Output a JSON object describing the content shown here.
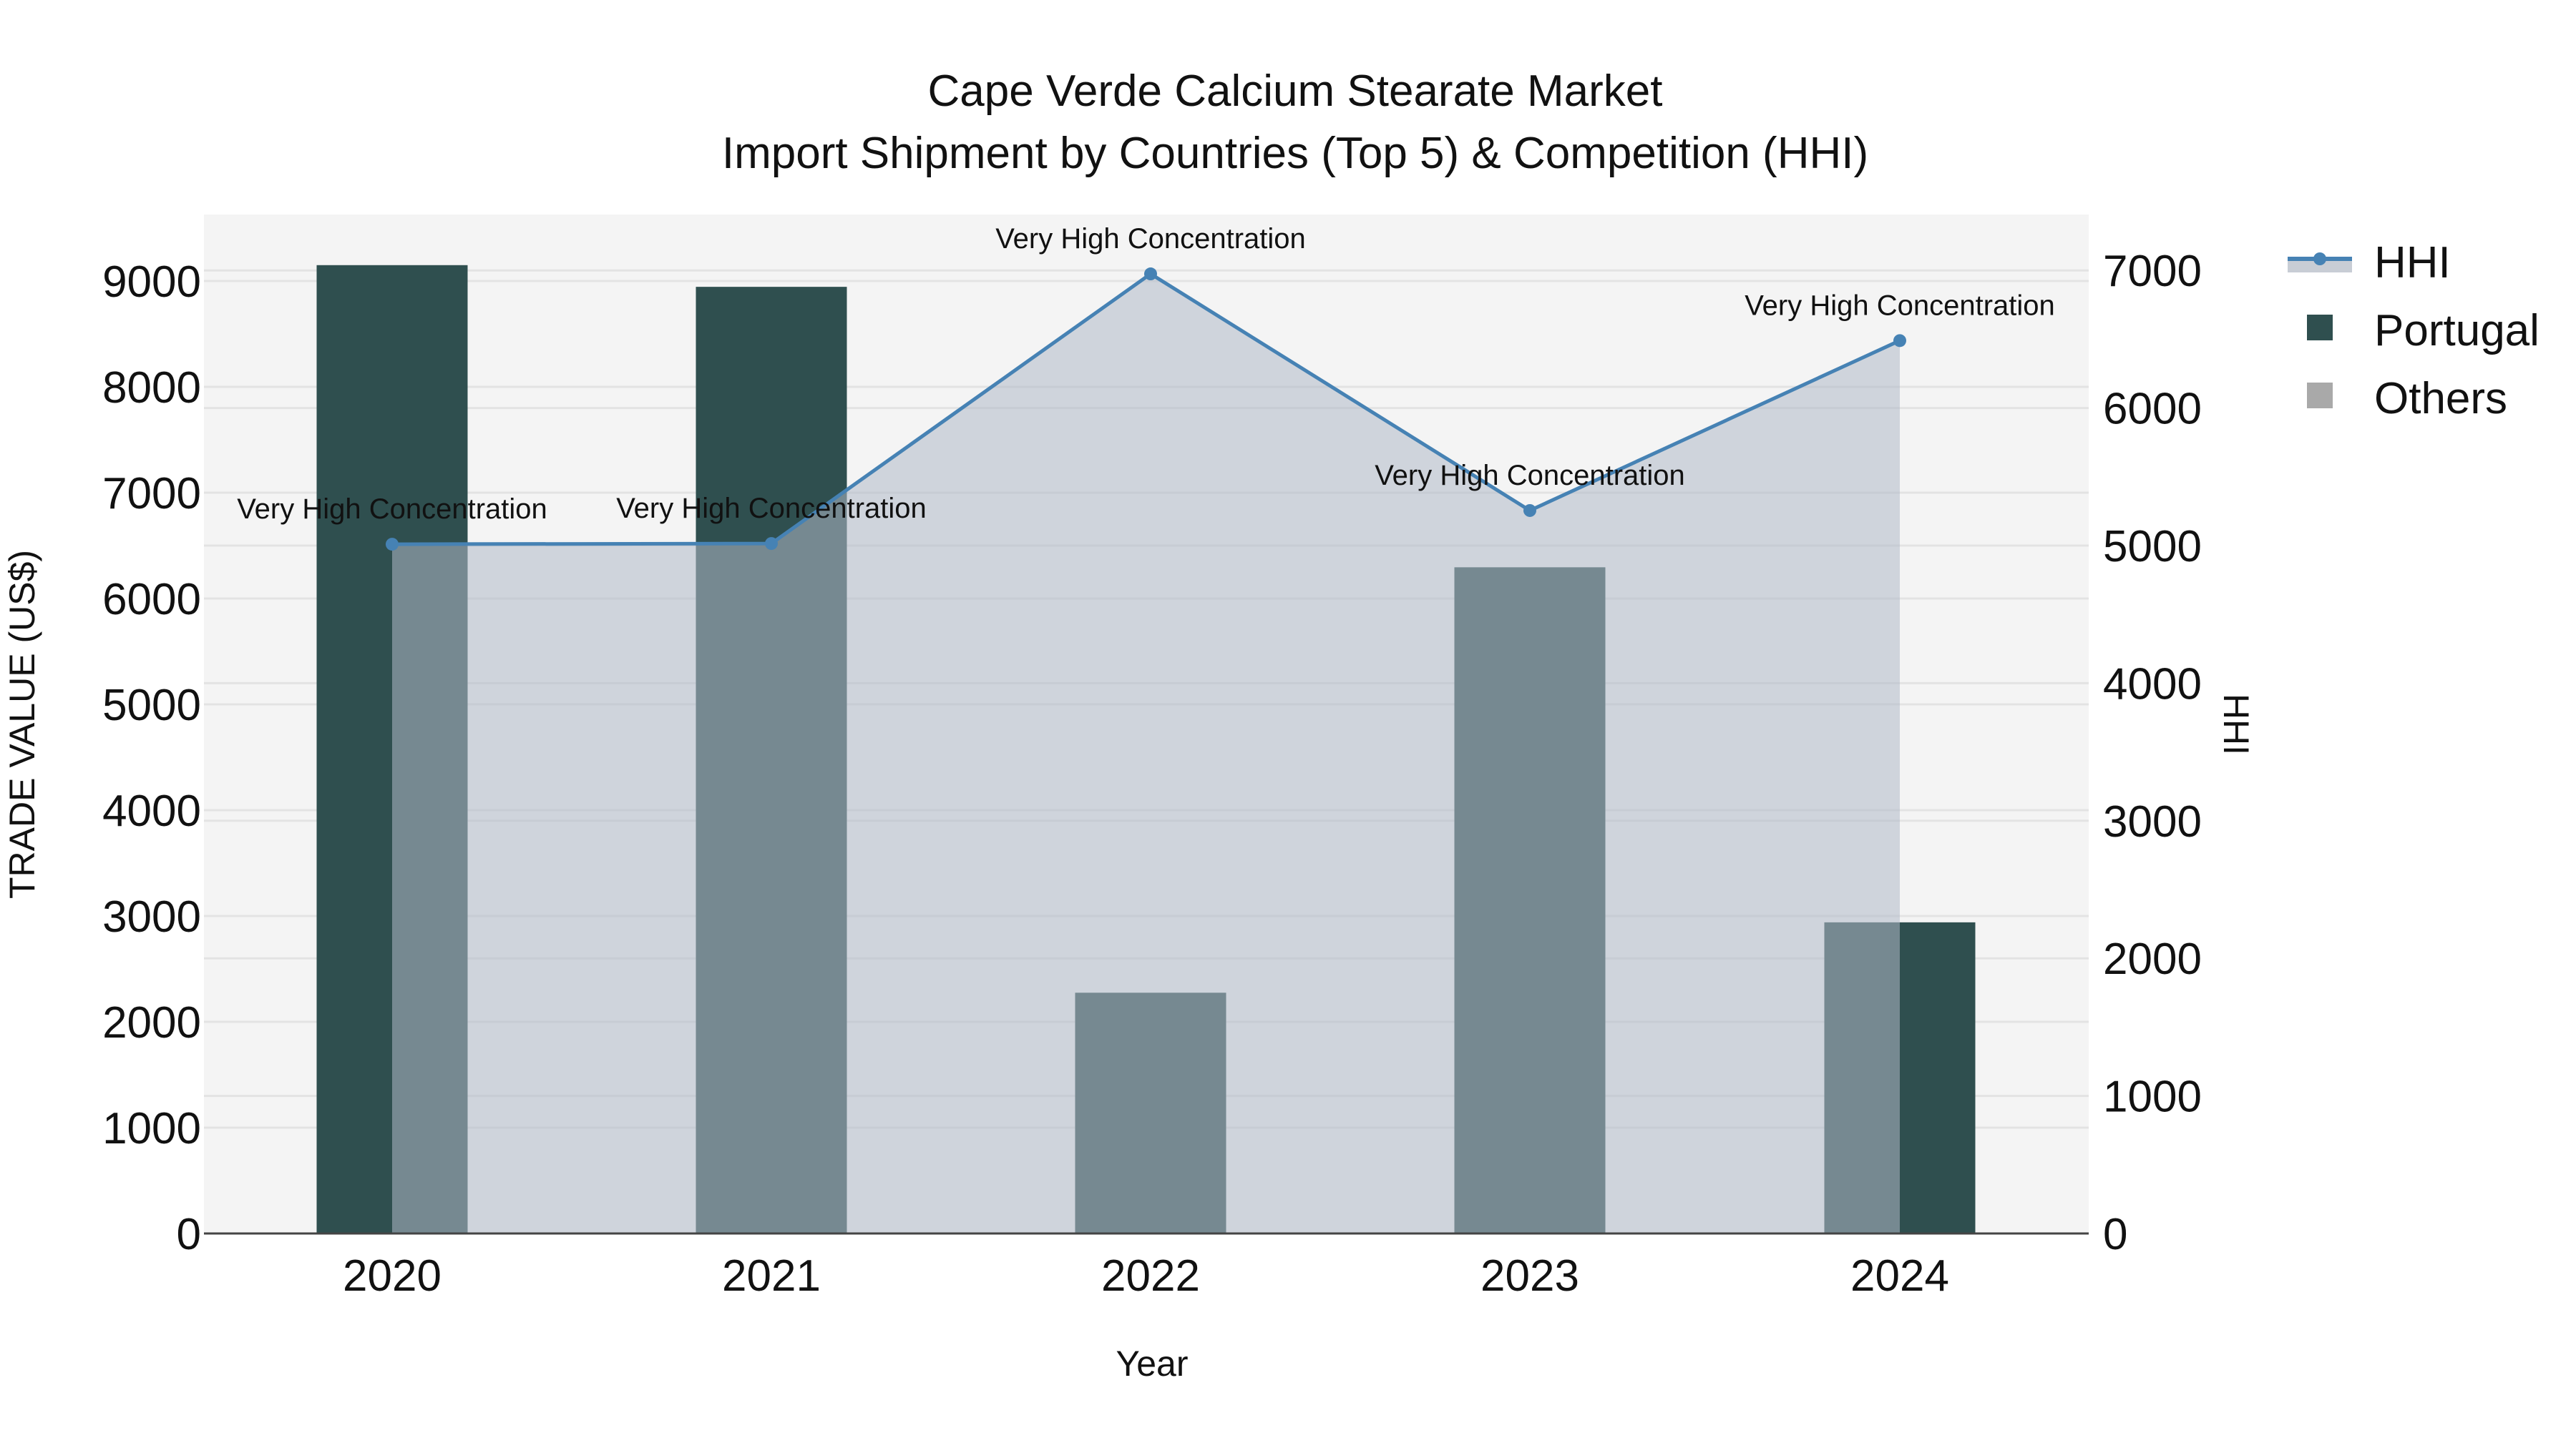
{
  "chart_data": {
    "type": "bar",
    "title": "Cape Verde Calcium Stearate Market",
    "subtitle": "Import Shipment by Countries (Top 5) & Competition (HHI)",
    "xlabel": "Year",
    "ylabel": "TRADE VALUE (US$)",
    "y2label": "HHI",
    "categories": [
      "2020",
      "2021",
      "2022",
      "2023",
      "2024"
    ],
    "series": [
      {
        "name": "Portugal",
        "type": "bar",
        "axis": "y",
        "color": "#2F4F4F",
        "values": [
          9150,
          8945,
          2275,
          6295,
          2940
        ]
      },
      {
        "name": "Others",
        "type": "bar",
        "axis": "y",
        "color": "#A9A9A9",
        "values": [
          0,
          0,
          0,
          0,
          0
        ]
      },
      {
        "name": "HHI",
        "type": "line+area",
        "axis": "y2",
        "color": "#4682B4",
        "fill": "#C8CDD5",
        "values": [
          5010,
          5015,
          6975,
          5255,
          6490
        ]
      }
    ],
    "annotations": [
      {
        "x": "2020",
        "text": "Very High Concentration"
      },
      {
        "x": "2021",
        "text": "Very High Concentration"
      },
      {
        "x": "2022",
        "text": "Very High Concentration"
      },
      {
        "x": "2023",
        "text": "Very High Concentration"
      },
      {
        "x": "2024",
        "text": "Very High Concentration"
      }
    ],
    "ylim": [
      0,
      9600
    ],
    "y2lim": [
      0,
      7450
    ],
    "yticks": [
      0,
      1000,
      2000,
      3000,
      4000,
      5000,
      6000,
      7000,
      8000,
      9000
    ],
    "y2ticks": [
      0,
      1000,
      2000,
      3000,
      4000,
      5000,
      6000,
      7000
    ],
    "grid": true,
    "legend_position": "right-top"
  },
  "legend": {
    "items": [
      {
        "label": "HHI",
        "icon": "line-marker-area-icon"
      },
      {
        "label": "Portugal",
        "icon": "square-icon"
      },
      {
        "label": "Others",
        "icon": "square-icon"
      }
    ]
  },
  "colors": {
    "plot_bg": "#F4F4F4",
    "grid": "#E3E3E3",
    "portugal": "#2F4F4F",
    "portugal_under_area": "#4A6268",
    "others": "#A9A9A9",
    "hhi_line": "#4682B4",
    "hhi_fill": "#C8CDD5"
  }
}
